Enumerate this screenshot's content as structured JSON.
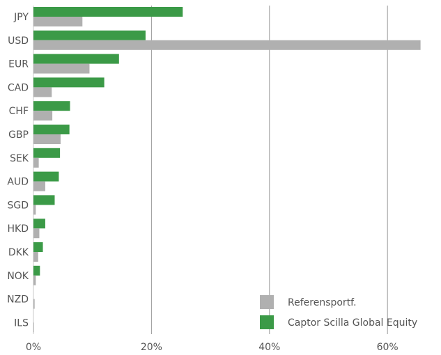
{
  "chart_data": {
    "type": "bar",
    "orientation": "horizontal",
    "categories": [
      "JPY",
      "USD",
      "EUR",
      "CAD",
      "CHF",
      "GBP",
      "SEK",
      "AUD",
      "SGD",
      "HKD",
      "DKK",
      "NOK",
      "NZD",
      "ILS"
    ],
    "series": [
      {
        "name": "Captor Scilla Global Equity",
        "color": "#3b9a47",
        "values": [
          25.3,
          19.0,
          14.5,
          12.0,
          6.2,
          6.1,
          4.5,
          4.3,
          3.6,
          2.0,
          1.6,
          1.1,
          0.0,
          0.0
        ]
      },
      {
        "name": "Referensportf.",
        "color": "#b0b0b0",
        "values": [
          8.3,
          65.6,
          9.5,
          3.1,
          3.2,
          4.6,
          0.9,
          2.0,
          0.4,
          1.0,
          0.8,
          0.4,
          0.2,
          0.1
        ]
      }
    ],
    "xlim": [
      0,
      66
    ],
    "xticks": [
      0,
      20,
      40,
      60
    ],
    "xtick_labels": [
      "0%",
      "20%",
      "40%",
      "60%"
    ],
    "grid": "vertical",
    "legend": {
      "position": "bottom-right",
      "entries": [
        {
          "label": "Referensportf.",
          "color": "#b0b0b0"
        },
        {
          "label": "Captor Scilla Global Equity",
          "color": "#3b9a47"
        }
      ]
    }
  }
}
